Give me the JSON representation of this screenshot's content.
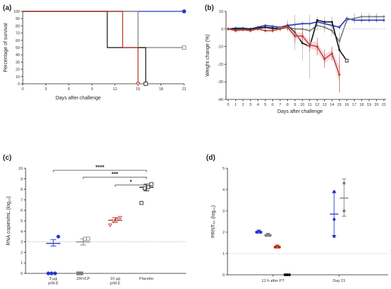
{
  "colors": {
    "blue": "#2536c9",
    "red": "#b8321c",
    "black": "#111111",
    "grey": "#7d7d7d",
    "pink": "#f2b6c6"
  },
  "chart_data": [
    {
      "panel": "(a)",
      "type": "line",
      "xlabel": "Days after challenge",
      "ylabel": "Percentage of survival",
      "xlim": [
        0,
        21
      ],
      "ylim": [
        0,
        100
      ],
      "xticks": [
        0,
        3,
        6,
        9,
        12,
        15,
        18,
        21
      ],
      "yticks": [
        0,
        10,
        20,
        30,
        40,
        50,
        60,
        70,
        80,
        90,
        100
      ],
      "series": [
        {
          "color": "blue",
          "x": [
            0,
            21
          ],
          "y": [
            100,
            100
          ],
          "end_marker": "circle"
        },
        {
          "color": "grey",
          "x": [
            0,
            15,
            15,
            21
          ],
          "y": [
            100,
            100,
            50,
            50
          ],
          "end_marker": "square"
        },
        {
          "color": "black",
          "x": [
            0,
            11,
            11,
            16,
            16
          ],
          "y": [
            100,
            100,
            50,
            50,
            0
          ],
          "end_marker": "square"
        },
        {
          "color": "red",
          "x": [
            0,
            13,
            13,
            15,
            15
          ],
          "y": [
            100,
            100,
            50,
            50,
            0
          ],
          "end_marker": "triangle"
        }
      ]
    },
    {
      "panel": "(b)",
      "type": "line",
      "xlabel": "Days after challenge",
      "ylabel": "Weight change (%)",
      "xlim": [
        0,
        21
      ],
      "ylim": [
        -40,
        10
      ],
      "xticks": [
        0,
        1,
        2,
        3,
        4,
        5,
        6,
        7,
        8,
        9,
        10,
        11,
        12,
        13,
        14,
        15,
        16,
        17,
        18,
        19,
        20,
        21
      ],
      "yticks": [
        -40,
        -30,
        -20,
        -10,
        0,
        10
      ],
      "series": [
        {
          "color": "blue",
          "x": [
            0,
            1,
            2,
            3,
            4,
            5,
            6,
            7,
            8,
            9,
            10,
            11,
            12,
            13,
            14,
            15,
            16,
            17,
            18,
            19,
            20,
            21
          ],
          "y": [
            0,
            0.5,
            0.5,
            0,
            1,
            2,
            1.5,
            1,
            2,
            2.5,
            3,
            3,
            4,
            3,
            2,
            1,
            6,
            5,
            5,
            5,
            5,
            5
          ],
          "err": [
            1,
            1,
            1,
            1,
            1,
            1,
            1,
            1,
            1.5,
            1.5,
            1.5,
            1.5,
            1.5,
            1.5,
            1.5,
            1.5,
            1.5,
            1.5,
            1.5,
            1.5,
            1.5,
            1.5
          ]
        },
        {
          "color": "grey",
          "x": [
            0,
            1,
            2,
            3,
            4,
            5,
            6,
            7,
            8,
            9,
            10,
            11,
            12,
            13,
            14,
            15,
            16,
            17,
            18,
            19,
            20,
            21
          ],
          "y": [
            0,
            0,
            0,
            -0.5,
            0,
            1,
            0,
            1,
            1,
            0,
            0,
            -1,
            2,
            1,
            -1,
            -7,
            5,
            6,
            7,
            7,
            7,
            7
          ],
          "err": [
            1,
            1,
            1,
            1,
            1,
            1,
            1,
            1,
            2,
            2,
            3,
            3,
            3,
            3,
            3,
            5,
            2,
            3,
            2,
            2,
            2,
            1
          ]
        },
        {
          "color": "black",
          "x": [
            0,
            1,
            2,
            3,
            4,
            5,
            6,
            7,
            8,
            9,
            10,
            11,
            12,
            13,
            14,
            15,
            16
          ],
          "y": [
            0,
            0,
            0,
            0,
            0.5,
            1,
            0.5,
            0,
            2,
            -2,
            -8,
            -10,
            5,
            4,
            4,
            -12,
            -18
          ],
          "err": [
            1,
            1,
            1,
            1,
            1,
            1,
            1.5,
            1.5,
            3,
            10,
            10,
            18,
            2,
            3,
            3,
            4,
            1
          ]
        },
        {
          "color": "red",
          "x": [
            0,
            1,
            2,
            3,
            4,
            5,
            6,
            7,
            8,
            9,
            10,
            11,
            12,
            13,
            14,
            15
          ],
          "y": [
            0,
            -1,
            -0.5,
            -1,
            0,
            -1,
            -1,
            0,
            1,
            -4,
            -4,
            -9,
            -10,
            -17,
            -14,
            -26
          ],
          "err": [
            1,
            1,
            1,
            1,
            1,
            1,
            1,
            1,
            2,
            4,
            4,
            4,
            5,
            5,
            4,
            10
          ]
        }
      ]
    },
    {
      "panel": "(c)",
      "type": "scatter",
      "ylabel": "RNA copies/mL (log₁₀)",
      "ylim": [
        0,
        10
      ],
      "yticks": [
        0,
        1,
        2,
        3,
        4,
        5,
        6,
        7,
        8,
        9,
        10
      ],
      "reference_line": 3,
      "categories": [
        "5 µg prM-E",
        "ZIKVLP",
        "10 µg prM-E",
        "Placebo"
      ],
      "groups": [
        {
          "color": "blue",
          "marker": "circle",
          "points": [
            0,
            0,
            0,
            3.5
          ],
          "mean": 2.85,
          "error": [
            2.6,
            3.2
          ]
        },
        {
          "color": "grey",
          "marker": "square",
          "points": [
            0,
            0,
            3.3,
            3.3
          ],
          "mean": 3.0,
          "error": [
            2.7,
            3.3
          ]
        },
        {
          "color": "red",
          "marker": "triangle",
          "points": [
            4.6,
            5.0,
            5.1,
            5.3
          ],
          "mean": 5.05,
          "error": [
            4.85,
            5.3
          ]
        },
        {
          "color": "black",
          "marker": "square",
          "points": [
            6.7,
            8.1,
            8.2,
            8.5
          ],
          "mean": 8.2,
          "error": [
            7.85,
            8.5
          ]
        }
      ],
      "significance": [
        {
          "label": "****",
          "from": 0,
          "to": 3,
          "y": 9.8
        },
        {
          "label": "***",
          "from": 1,
          "to": 3,
          "y": 9.15
        },
        {
          "label": "*",
          "from": 2,
          "to": 3,
          "y": 8.4
        }
      ]
    },
    {
      "panel": "(d)",
      "type": "scatter",
      "ylabel": "PRNT₅₀ (log₁₀)",
      "ylim": [
        0,
        5
      ],
      "yticks": [
        0,
        1,
        2,
        3,
        4,
        5
      ],
      "reference_line": 1,
      "categories": [
        "12 h after PT",
        "Day 21"
      ],
      "groups": [
        {
          "category": 0,
          "color": "blue",
          "points": [
            2.0,
            2.05,
            2.0
          ],
          "mean": 2.02,
          "error": [
            1.95,
            2.1
          ]
        },
        {
          "category": 0,
          "color": "grey",
          "points": [
            1.85,
            1.9,
            1.85
          ],
          "mean": 1.87,
          "error": [
            1.8,
            1.95
          ]
        },
        {
          "category": 0,
          "color": "red",
          "points": [
            1.3,
            1.35,
            1.3
          ],
          "mean": 1.32,
          "error": [
            1.25,
            1.4
          ]
        },
        {
          "category": 0,
          "color": "black",
          "points": [
            0,
            0,
            0
          ],
          "mean": 0,
          "error": [
            0,
            0
          ]
        },
        {
          "category": 1,
          "color": "blue",
          "points": [
            1.8,
            2.6,
            3.9
          ],
          "mean": 2.85,
          "error": [
            1.85,
            3.85
          ]
        },
        {
          "category": 1,
          "color": "grey",
          "points": [
            3.0,
            4.3
          ],
          "mean": 3.6,
          "error": [
            2.75,
            4.5
          ]
        }
      ]
    }
  ]
}
